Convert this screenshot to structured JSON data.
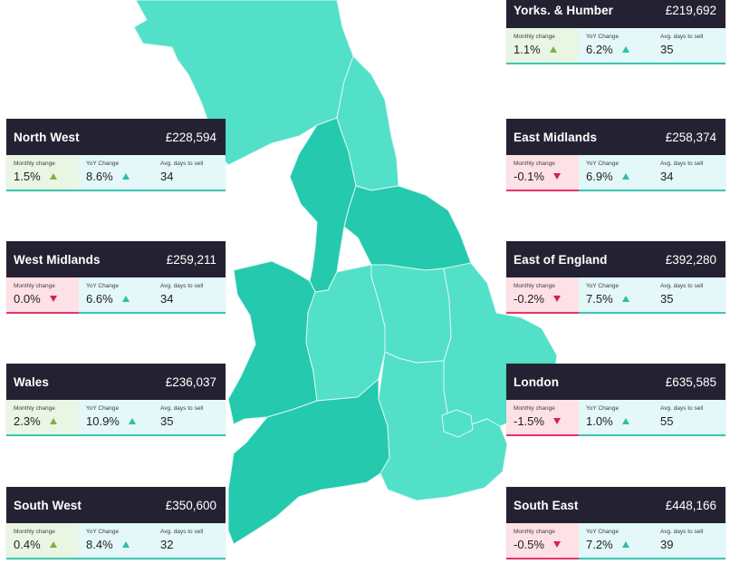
{
  "labels": {
    "monthly": "Monthly change",
    "yoy": "YoY Change",
    "days": "Avg. days to sell"
  },
  "colors": {
    "header_bg": "#242232",
    "map_light": "#52e0c9",
    "map_dark": "#24c9ae",
    "increase_arrow": "#2bbfa7",
    "monthly_up_arrow": "#7fb046",
    "monthly_down_arrow": "#d6224f"
  },
  "regions": [
    {
      "name": "Yorks. & Humber",
      "price": "£219,692",
      "monthly": "1.1%",
      "monthly_dir": "up",
      "yoy": "6.2%",
      "days": "35"
    },
    {
      "name": "North West",
      "price": "£228,594",
      "monthly": "1.5%",
      "monthly_dir": "up",
      "yoy": "8.6%",
      "days": "34"
    },
    {
      "name": "East Midlands",
      "price": "£258,374",
      "monthly": "-0.1%",
      "monthly_dir": "down",
      "yoy": "6.9%",
      "days": "34"
    },
    {
      "name": "West Midlands",
      "price": "£259,211",
      "monthly": "0.0%",
      "monthly_dir": "down",
      "yoy": "6.6%",
      "days": "34"
    },
    {
      "name": "East of England",
      "price": "£392,280",
      "monthly": "-0.2%",
      "monthly_dir": "down",
      "yoy": "7.5%",
      "days": "35"
    },
    {
      "name": "Wales",
      "price": "£236,037",
      "monthly": "2.3%",
      "monthly_dir": "up",
      "yoy": "10.9%",
      "days": "35"
    },
    {
      "name": "London",
      "price": "£635,585",
      "monthly": "-1.5%",
      "monthly_dir": "down",
      "yoy": "1.0%",
      "days": "55"
    },
    {
      "name": "South West",
      "price": "£350,600",
      "monthly": "0.4%",
      "monthly_dir": "up",
      "yoy": "8.4%",
      "days": "32"
    },
    {
      "name": "South East",
      "price": "£448,166",
      "monthly": "-0.5%",
      "monthly_dir": "down",
      "yoy": "7.2%",
      "days": "39"
    }
  ]
}
